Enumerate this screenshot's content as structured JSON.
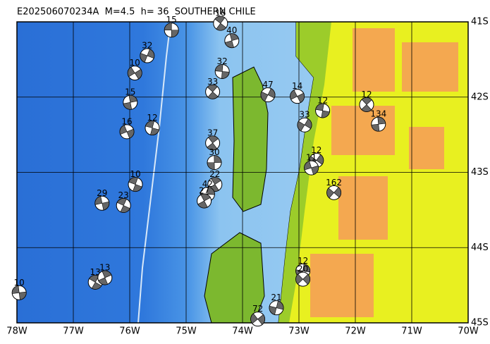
{
  "map_data": {
    "title": "E202506070234A  M=4.5  h= 36  SOUTHERN CHILE",
    "lon_range": [
      -78,
      -70
    ],
    "lat_range": [
      -45,
      -41
    ],
    "lon_ticks": [
      {
        "value": -78,
        "label": "78W"
      },
      {
        "value": -77,
        "label": "77W"
      },
      {
        "value": -76,
        "label": "76W"
      },
      {
        "value": -75,
        "label": "75W"
      },
      {
        "value": -74,
        "label": "74W"
      },
      {
        "value": -73,
        "label": "73W"
      },
      {
        "value": -72,
        "label": "72W"
      },
      {
        "value": -71,
        "label": "71W"
      },
      {
        "value": -70,
        "label": "70W"
      }
    ],
    "lat_ticks": [
      {
        "value": -41,
        "label": "41S"
      },
      {
        "value": -42,
        "label": "42S"
      },
      {
        "value": -43,
        "label": "43S"
      },
      {
        "value": -44,
        "label": "44S"
      },
      {
        "value": -45,
        "label": "45S"
      }
    ],
    "events": [
      {
        "depth": 15,
        "lon": -75.26,
        "lat": -41.11
      },
      {
        "depth": 16,
        "lon": -74.39,
        "lat": -41.02
      },
      {
        "depth": 40,
        "lon": -74.19,
        "lat": -41.25
      },
      {
        "depth": 32,
        "lon": -75.69,
        "lat": -41.45
      },
      {
        "depth": 10,
        "lon": -75.91,
        "lat": -41.68
      },
      {
        "depth": 32,
        "lon": -74.36,
        "lat": -41.66
      },
      {
        "depth": 33,
        "lon": -74.53,
        "lat": -41.93
      },
      {
        "depth": 15,
        "lon": -75.99,
        "lat": -42.07
      },
      {
        "depth": 47,
        "lon": -73.55,
        "lat": -41.97
      },
      {
        "depth": 14,
        "lon": -73.03,
        "lat": -41.99
      },
      {
        "depth": 12,
        "lon": -72.58,
        "lat": -42.18
      },
      {
        "depth": 12,
        "lon": -71.8,
        "lat": -42.1
      },
      {
        "depth": 134,
        "lon": -71.59,
        "lat": -42.36
      },
      {
        "depth": 33,
        "lon": -72.9,
        "lat": -42.37
      },
      {
        "depth": 16,
        "lon": -76.05,
        "lat": -42.46
      },
      {
        "depth": 12,
        "lon": -75.6,
        "lat": -42.41
      },
      {
        "depth": 37,
        "lon": -74.53,
        "lat": -42.61
      },
      {
        "depth": 30,
        "lon": -74.5,
        "lat": -42.87
      },
      {
        "depth": 12,
        "lon": -72.69,
        "lat": -42.84
      },
      {
        "depth": 11,
        "lon": -72.78,
        "lat": -42.94
      },
      {
        "depth": 10,
        "lon": -75.9,
        "lat": -43.16
      },
      {
        "depth": 22,
        "lon": -74.49,
        "lat": -43.16
      },
      {
        "depth": 42,
        "lon": -74.62,
        "lat": -43.29
      },
      {
        "depth": 162,
        "lon": -72.38,
        "lat": -43.27
      },
      {
        "depth": 29,
        "lon": -76.49,
        "lat": -43.41
      },
      {
        "depth": 23,
        "lon": -76.11,
        "lat": -43.44
      },
      {
        "depth": 27,
        "lon": -74.68,
        "lat": -43.38
      },
      {
        "depth": 12,
        "lon": -72.93,
        "lat": -44.31
      },
      {
        "depth": 20,
        "lon": -72.93,
        "lat": -44.42
      },
      {
        "depth": 10,
        "lon": -77.96,
        "lat": -44.6
      },
      {
        "depth": 13,
        "lon": -76.61,
        "lat": -44.46
      },
      {
        "depth": 13,
        "lon": -76.44,
        "lat": -44.4
      },
      {
        "depth": 21,
        "lon": -73.4,
        "lat": -44.8
      },
      {
        "depth": 72,
        "lon": -73.73,
        "lat": -44.95
      }
    ]
  }
}
